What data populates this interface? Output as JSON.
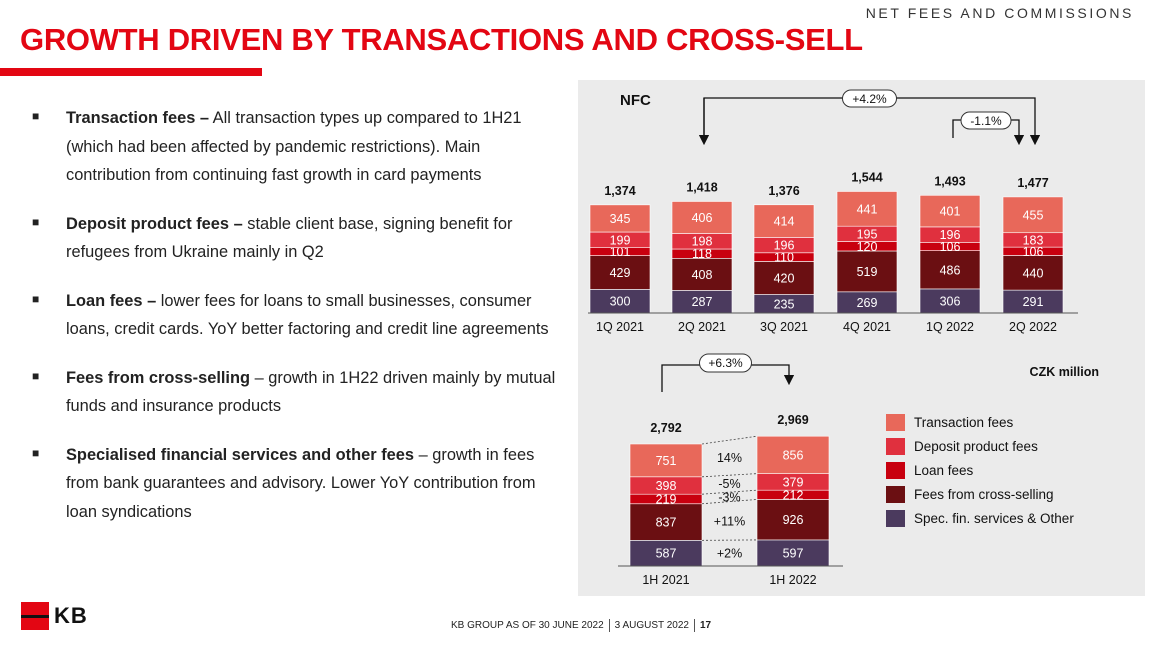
{
  "header": {
    "section_label": "NET FEES AND COMMISSIONS",
    "title": "GROWTH DRIVEN BY TRANSACTIONS AND CROSS-SELL"
  },
  "bullets": [
    {
      "bold": "Transaction fees –",
      "text": " All transaction types up compared to 1H21 (which had been affected by pandemic restrictions). Main contribution from continuing fast growth in card payments"
    },
    {
      "bold": "Deposit product fees –",
      "text": " stable client base, signing benefit for refugees from Ukraine mainly in Q2"
    },
    {
      "bold": "Loan fees –",
      "text": " lower fees for loans to small businesses, consumer loans, credit cards. YoY better factoring and credit line agreements"
    },
    {
      "bold": "Fees from cross-selling",
      "text": " – growth in 1H22 driven mainly by mutual funds and insurance products"
    },
    {
      "bold": "Specialised financial services and other fees",
      "text": " – growth in fees from bank guarantees and advisory. Lower YoY contribution from loan syndications"
    }
  ],
  "chart_data": [
    {
      "type": "bar",
      "stacked": true,
      "title": "NFC",
      "categories": [
        "1Q 2021",
        "2Q 2021",
        "3Q 2021",
        "4Q 2021",
        "1Q 2022",
        "2Q 2022"
      ],
      "totals": [
        1374,
        1418,
        1376,
        1544,
        1493,
        1477
      ],
      "totals_text": [
        "1,374",
        "1,418",
        "1,376",
        "1,544",
        "1,493",
        "1,477"
      ],
      "series": [
        {
          "name": "Spec. fin. services & Other",
          "color": "#4b3a5e",
          "values": [
            300,
            287,
            235,
            269,
            306,
            291
          ]
        },
        {
          "name": "Fees from cross-selling",
          "color": "#6b0f12",
          "values": [
            429,
            408,
            420,
            519,
            486,
            440
          ]
        },
        {
          "name": "Loan fees",
          "color": "#c8000f",
          "values": [
            101,
            118,
            110,
            120,
            106,
            106
          ]
        },
        {
          "name": "Deposit product fees",
          "color": "#e0303e",
          "values": [
            199,
            198,
            196,
            195,
            196,
            183
          ]
        },
        {
          "name": "Transaction fees",
          "color": "#e8685a",
          "values": [
            345,
            406,
            414,
            441,
            401,
            455
          ]
        }
      ],
      "annotations": [
        {
          "text": "+4.2%",
          "from": "2Q 2021",
          "to": "2Q 2022"
        },
        {
          "text": "-1.1%",
          "from": "1Q 2022",
          "to": "2Q 2022"
        }
      ]
    },
    {
      "type": "bar",
      "stacked": true,
      "categories": [
        "1H 2021",
        "1H 2022"
      ],
      "totals": [
        2792,
        2969
      ],
      "totals_text": [
        "2,792",
        "2,969"
      ],
      "unit": "CZK million",
      "series": [
        {
          "name": "Spec. fin. services & Other",
          "color": "#4b3a5e",
          "values": [
            587,
            597
          ],
          "change": "+2%"
        },
        {
          "name": "Fees from cross-selling",
          "color": "#6b0f12",
          "values": [
            837,
            926
          ],
          "change": "+11%"
        },
        {
          "name": "Loan fees",
          "color": "#c8000f",
          "values": [
            219,
            212
          ],
          "change": "-3%"
        },
        {
          "name": "Deposit product fees",
          "color": "#e0303e",
          "values": [
            398,
            379
          ],
          "change": "-5%"
        },
        {
          "name": "Transaction fees",
          "color": "#e8685a",
          "values": [
            751,
            856
          ],
          "change": "14%"
        }
      ],
      "annotations": [
        {
          "text": "+6.3%",
          "from": "1H 2021",
          "to": "1H 2022"
        }
      ]
    }
  ],
  "legend": [
    {
      "label": "Transaction fees",
      "color": "#e8685a"
    },
    {
      "label": "Deposit product fees",
      "color": "#e0303e"
    },
    {
      "label": "Loan fees",
      "color": "#c8000f"
    },
    {
      "label": "Fees from cross-selling",
      "color": "#6b0f12"
    },
    {
      "label": "Spec. fin. services & Other",
      "color": "#4b3a5e"
    }
  ],
  "footer": {
    "group": "KB GROUP AS OF 30 JUNE 2022",
    "date": "3 AUGUST 2022",
    "page": "17"
  },
  "logo": {
    "text": "KB"
  }
}
